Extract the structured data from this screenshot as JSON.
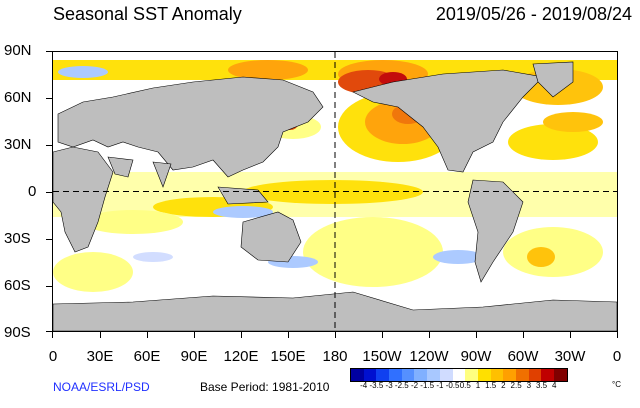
{
  "title": "Seasonal SST Anomaly",
  "date_range": "2019/05/26 - 2019/08/24",
  "y_ticks": [
    "90N",
    "60N",
    "30N",
    "0",
    "30S",
    "60S",
    "90S"
  ],
  "x_ticks": [
    "0",
    "30E",
    "60E",
    "90E",
    "120E",
    "150E",
    "180",
    "150W",
    "120W",
    "90W",
    "60W",
    "30W",
    "0"
  ],
  "source": "NOAA/ESRL/PSD",
  "base_period": "Base Period: 1981-2010",
  "colorbar": {
    "labels": [
      "-4",
      "-3.5",
      "-3",
      "-2.5",
      "-2",
      "-1.5",
      "-1",
      "-0.5",
      "0.5",
      "1",
      "1.5",
      "2",
      "2.5",
      "3",
      "3.5",
      "4"
    ],
    "unit": "°C",
    "colors": [
      "#0000a0",
      "#0010d0",
      "#1040f0",
      "#3070ff",
      "#5590ff",
      "#80b0ff",
      "#a8c8ff",
      "#d0dcff",
      "#ffffff",
      "#ffff80",
      "#ffe000",
      "#ffc000",
      "#ffa000",
      "#f07000",
      "#e04000",
      "#c00000",
      "#800000"
    ]
  },
  "colors": {
    "land": "#bebebe",
    "ocean": "#ffffff"
  }
}
